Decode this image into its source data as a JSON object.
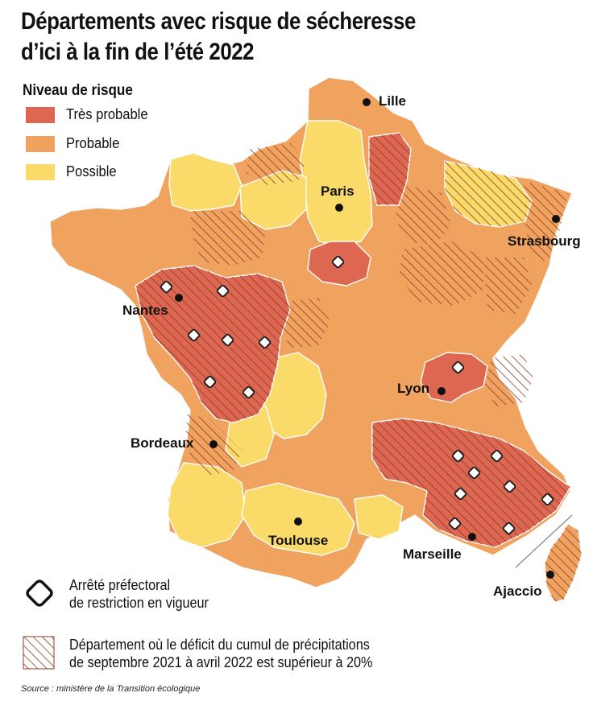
{
  "title_line1": "Départements avec risque de sécheresse",
  "title_line2": "d’ici à la fin de l’été 2022",
  "legend": {
    "heading": "Niveau de risque",
    "items": [
      {
        "label": "Très probable",
        "color": "#de6751"
      },
      {
        "label": "Probable",
        "color": "#f0a35e"
      },
      {
        "label": "Possible",
        "color": "#fadb6a"
      }
    ]
  },
  "cities": {
    "lille": "Lille",
    "paris": "Paris",
    "strasbourg": "Strasbourg",
    "nantes": "Nantes",
    "lyon": "Lyon",
    "bordeaux": "Bordeaux",
    "toulouse": "Toulouse",
    "marseille": "Marseille",
    "ajaccio": "Ajaccio"
  },
  "bottom_legend": {
    "arrete_line1": "Arrêté préfectoral",
    "arrete_line2": "de restriction en vigueur",
    "deficit_line1": "Département où le déficit du cumul de précipitations",
    "deficit_line2": "de septembre 2021 à avril 2022 est supérieur à 20%"
  },
  "source": "Source : ministère de la Transition écologique",
  "colors": {
    "very_probable": "#de6751",
    "probable": "#f0a35e",
    "possible": "#fadb6a",
    "hatch": "#8a3b2c"
  }
}
